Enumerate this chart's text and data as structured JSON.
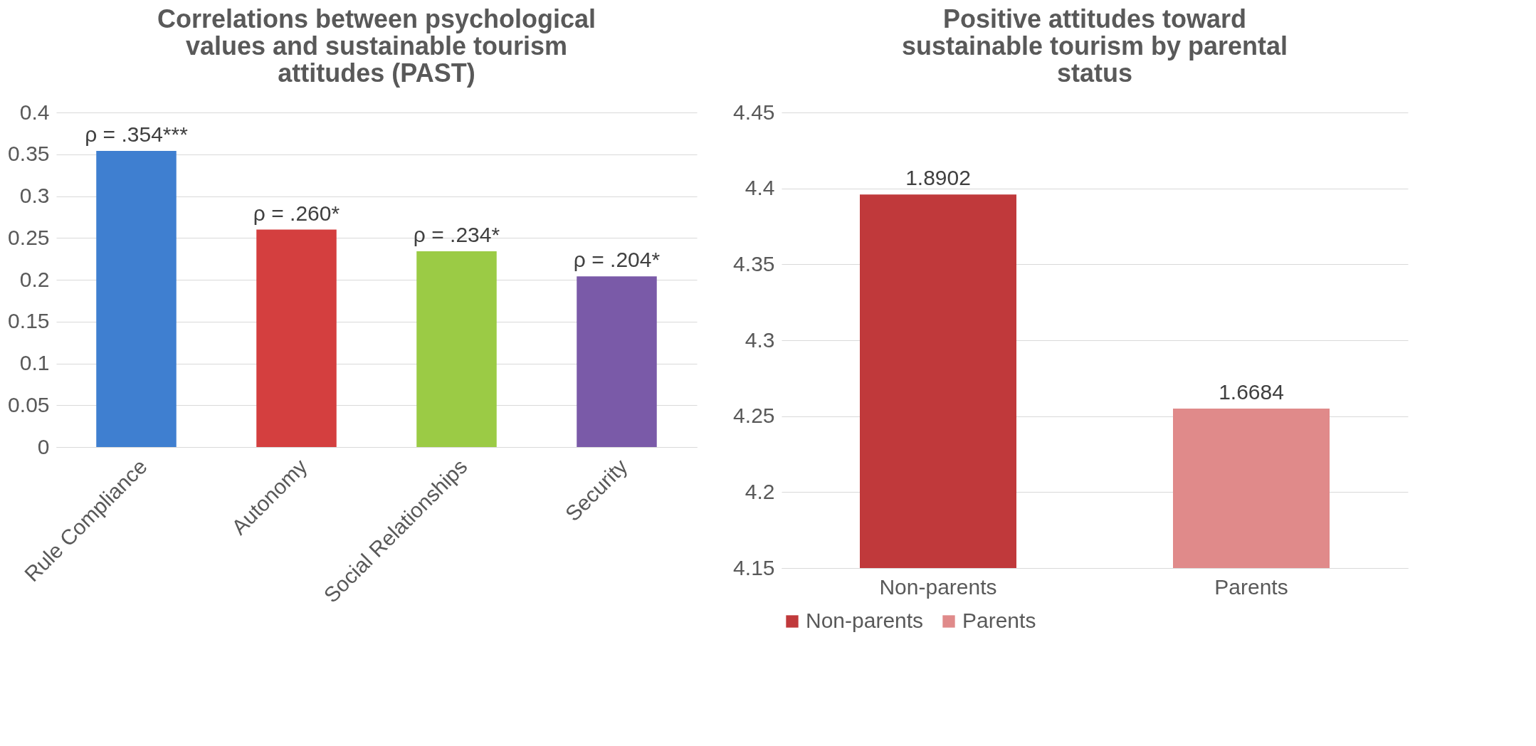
{
  "chart_data": [
    {
      "type": "bar",
      "title": "Correlations between psychological values and sustainable tourism attitudes (PAST)",
      "categories": [
        "Rule Compliance",
        "Autonomy",
        "Social Relationships",
        "Security"
      ],
      "values": [
        0.354,
        0.26,
        0.234,
        0.204
      ],
      "colors": [
        "#3f7fd0",
        "#d43f3f",
        "#9bcb45",
        "#7a5aa8"
      ],
      "value_labels": [
        "ρ = .354***",
        "ρ = .260*",
        "ρ = .234*",
        "ρ = .204*"
      ],
      "ylim": [
        0,
        0.4
      ],
      "yticks": [
        0,
        0.05,
        0.1,
        0.15,
        0.2,
        0.25,
        0.3,
        0.35,
        0.4
      ],
      "grid": "y"
    },
    {
      "type": "bar",
      "title": "Positive attitudes toward sustainable tourism by parental status",
      "categories": [
        "Non-parents",
        "Parents"
      ],
      "series": [
        {
          "name": "Non-parents",
          "color": "#c0393b",
          "values": [
            4.396,
            null
          ]
        },
        {
          "name": "Parents",
          "color": "#e08a8a",
          "values": [
            null,
            4.255
          ]
        }
      ],
      "annotations": [
        {
          "text": "1.8902",
          "x": "Non-parents",
          "y": 4.396
        },
        {
          "text": "1.6684",
          "x": "Parents",
          "y": 4.255
        }
      ],
      "ylim": [
        4.15,
        4.45
      ],
      "yticks": [
        4.15,
        4.2,
        4.25,
        4.3,
        4.35,
        4.4,
        4.45
      ],
      "grid": "y",
      "legend": "bottom"
    }
  ]
}
